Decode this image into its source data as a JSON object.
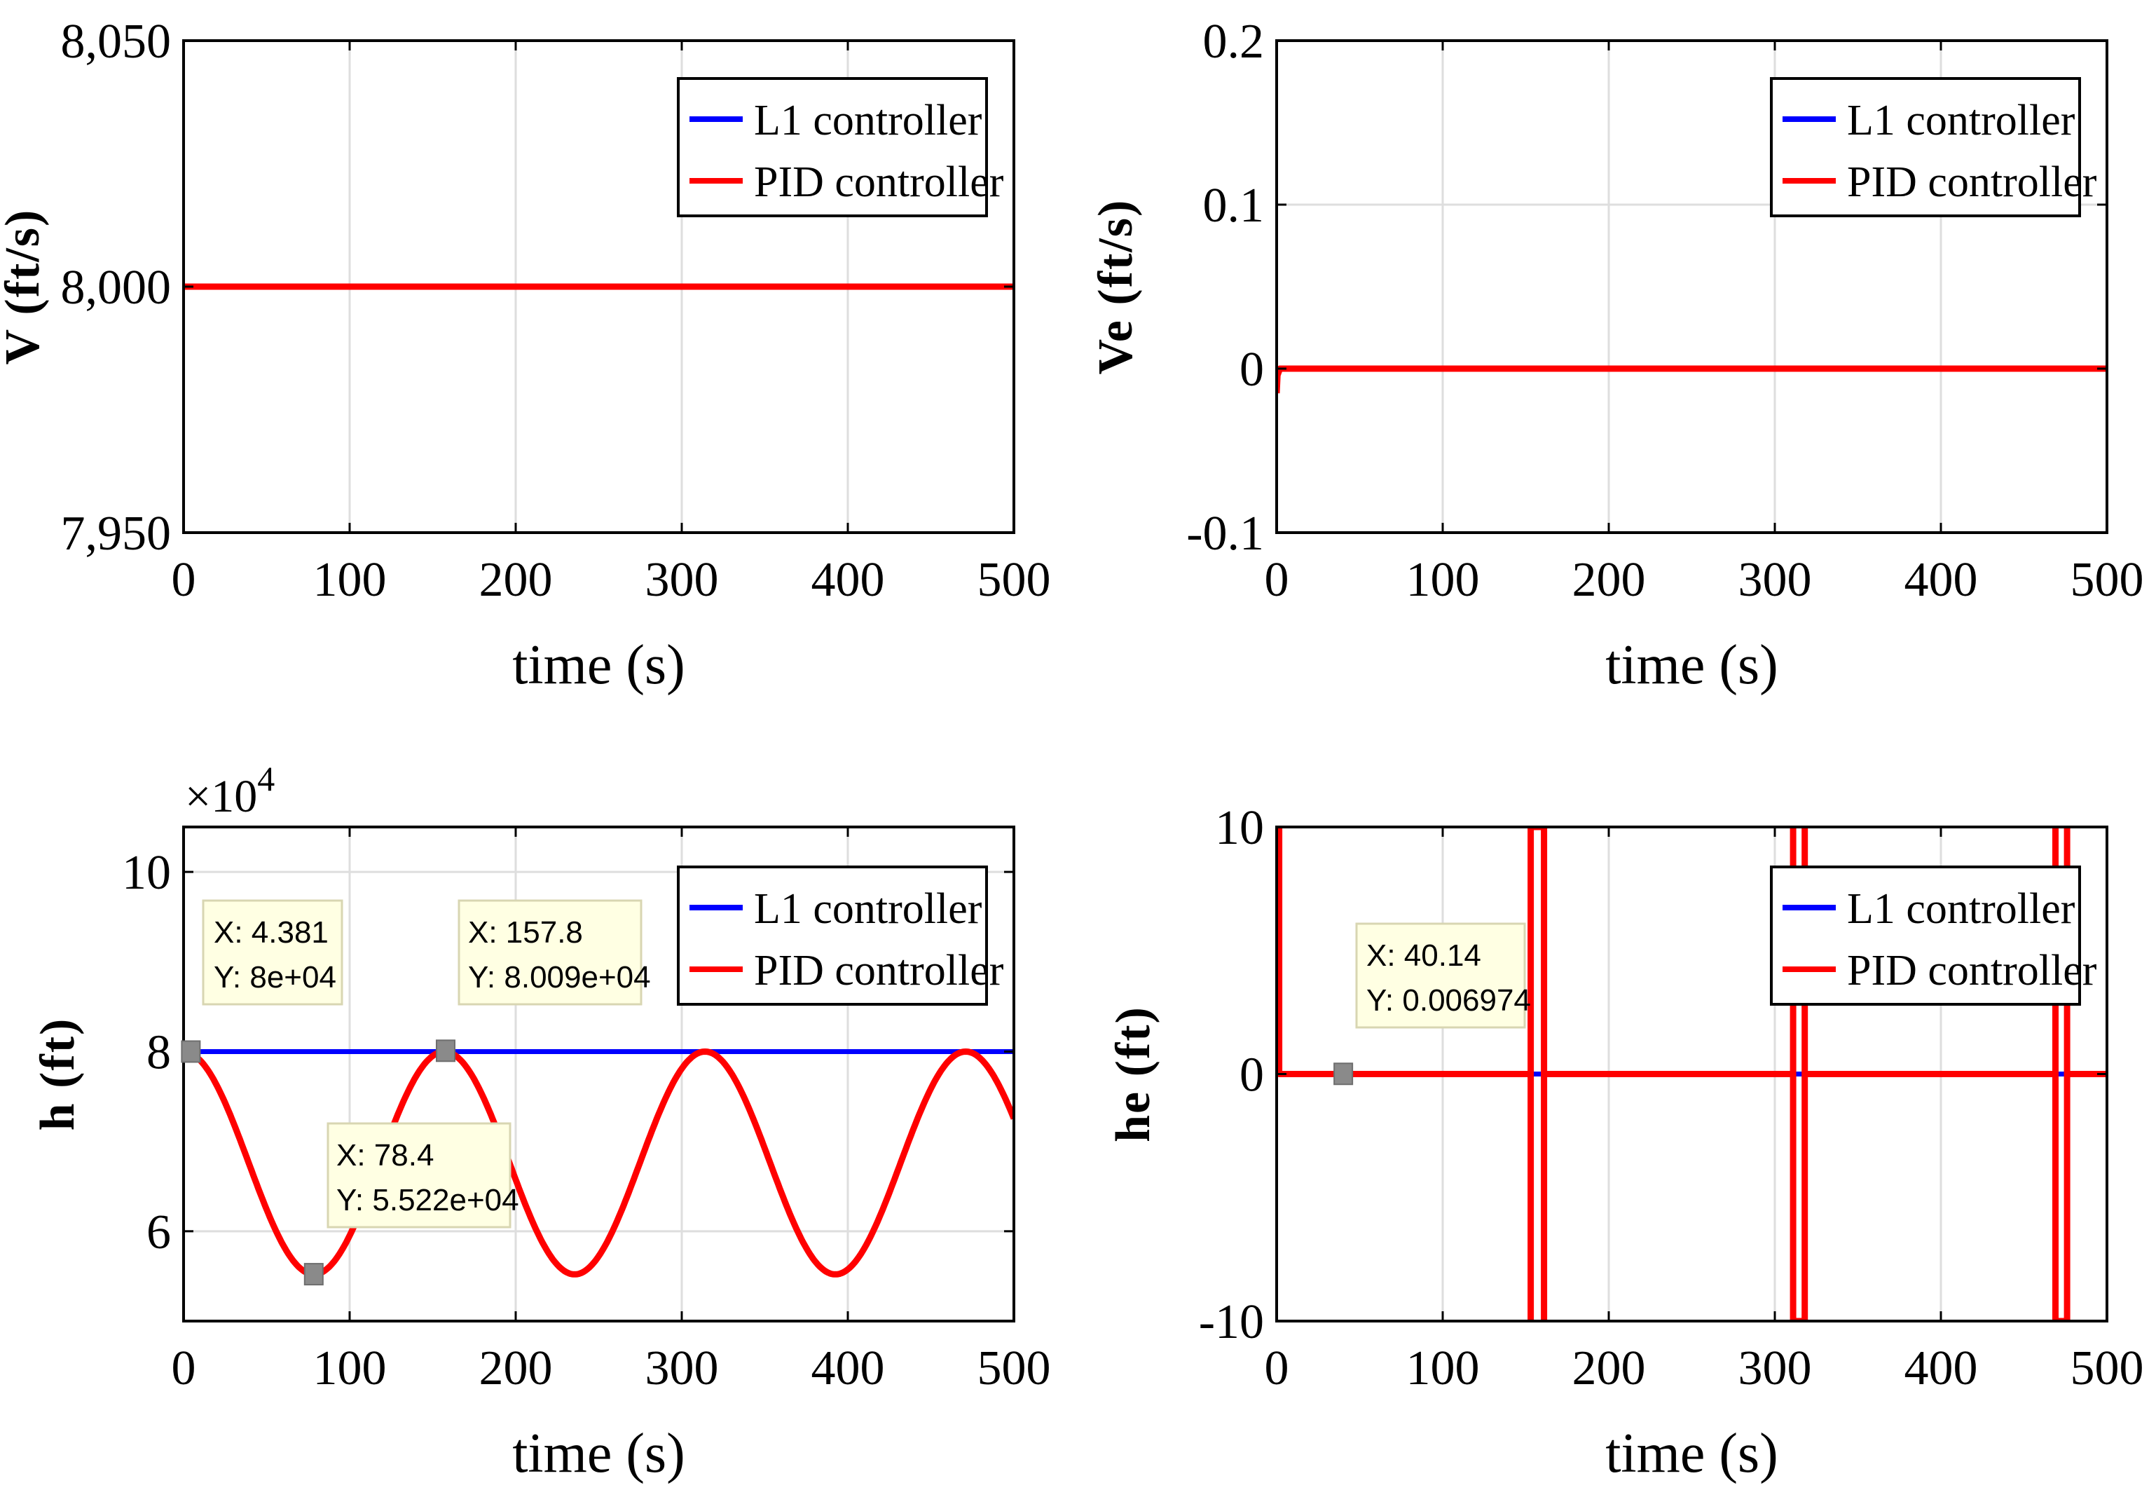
{
  "chart_data": [
    {
      "type": "line",
      "ylabel": "V (ft/s)",
      "xlabel": "time (s)",
      "xlim": [
        0,
        500
      ],
      "ylim": [
        7950,
        8050
      ],
      "grid": true,
      "xticks": [
        0,
        100,
        200,
        300,
        400,
        500
      ],
      "xtick_labels": [
        "0",
        "100",
        "200",
        "300",
        "400",
        "500"
      ],
      "yticks": [
        7950,
        8000,
        8050
      ],
      "ytick_labels": [
        "7,950",
        "8,000",
        "8,050"
      ],
      "legend": {
        "location": "top-right",
        "entries": [
          "L1 controller",
          "PID controller"
        ]
      },
      "series": [
        {
          "name": "L1 controller",
          "color": "#0000ff",
          "kind": "const",
          "value": 8000
        },
        {
          "name": "PID controller",
          "color": "#ff0000",
          "kind": "const",
          "value": 8000
        }
      ]
    },
    {
      "type": "line",
      "ylabel": "Ve (ft/s)",
      "xlabel": "time (s)",
      "xlim": [
        0,
        500
      ],
      "ylim": [
        -0.1,
        0.2
      ],
      "grid": true,
      "xticks": [
        0,
        100,
        200,
        300,
        400,
        500
      ],
      "xtick_labels": [
        "0",
        "100",
        "200",
        "300",
        "400",
        "500"
      ],
      "yticks": [
        -0.1,
        0,
        0.1,
        0.2
      ],
      "ytick_labels": [
        "-0.1",
        "0",
        "0.1",
        "0.2"
      ],
      "legend": {
        "location": "top-right",
        "entries": [
          "L1 controller",
          "PID controller"
        ]
      },
      "series": [
        {
          "name": "L1 controller",
          "color": "#0000ff",
          "kind": "const",
          "value": 0
        },
        {
          "name": "PID controller",
          "color": "#ff0000",
          "kind": "points",
          "x": [
            0,
            0.5,
            2,
            500
          ],
          "y": [
            -0.015,
            -0.004,
            0,
            0
          ]
        }
      ]
    },
    {
      "type": "line",
      "ylabel": "h (ft)",
      "xlabel": "time (s)",
      "xlim": [
        0,
        500
      ],
      "ylim": [
        5,
        10.5
      ],
      "y_multiplier_label": "×10",
      "y_multiplier_exponent": "4",
      "grid": true,
      "xticks": [
        0,
        100,
        200,
        300,
        400,
        500
      ],
      "xtick_labels": [
        "0",
        "100",
        "200",
        "300",
        "400",
        "500"
      ],
      "yticks": [
        6,
        8,
        10
      ],
      "ytick_labels": [
        "6",
        "8",
        "10"
      ],
      "legend": {
        "location": "top-right",
        "entries": [
          "L1 controller",
          "PID controller"
        ]
      },
      "series": [
        {
          "name": "L1 controller",
          "color": "#0000ff",
          "kind": "const",
          "value": 8
        },
        {
          "name": "PID controller",
          "color": "#ff0000",
          "kind": "cosine",
          "mean": 6.76,
          "amplitude": 1.24,
          "period": 157,
          "min": 5.52
        }
      ],
      "datatips": [
        {
          "x": 4.381,
          "y": 8.0,
          "x_label": "X: 4.381",
          "y_label": "Y: 8e+04"
        },
        {
          "x": 157.8,
          "y": 8.009,
          "x_label": "X: 157.8",
          "y_label": "Y: 8.009e+04"
        },
        {
          "x": 78.4,
          "y": 5.522,
          "x_label": "X: 78.4",
          "y_label": "Y: 5.522e+04"
        }
      ]
    },
    {
      "type": "line",
      "ylabel": "he (ft)",
      "xlabel": "time (s)",
      "xlim": [
        0,
        500
      ],
      "ylim": [
        -10,
        10
      ],
      "grid": true,
      "xticks": [
        0,
        100,
        200,
        300,
        400,
        500
      ],
      "xtick_labels": [
        "0",
        "100",
        "200",
        "300",
        "400",
        "500"
      ],
      "yticks": [
        -10,
        0,
        10
      ],
      "ytick_labels": [
        "-10",
        "0",
        "10"
      ],
      "legend": {
        "location": "top-right",
        "entries": [
          "L1 controller",
          "PID controller"
        ]
      },
      "series": [
        {
          "name": "L1 controller",
          "color": "#0000ff",
          "kind": "const",
          "value": 0
        },
        {
          "name": "PID controller",
          "color": "#ff0000",
          "kind": "points",
          "x": [
            0,
            0,
            1.5,
            1.5,
            153,
            153,
            153,
            161,
            161,
            161,
            311,
            311,
            311,
            318,
            318,
            318,
            469,
            469,
            469,
            476,
            476,
            476,
            500
          ],
          "y": [
            0,
            10,
            10,
            0,
            0,
            -10,
            10,
            10,
            -10,
            0,
            0,
            10,
            -10,
            -10,
            10,
            0,
            0,
            10,
            -10,
            -10,
            10,
            0,
            0
          ]
        }
      ],
      "datatips": [
        {
          "x": 40.14,
          "y": 0.006974,
          "x_label": "X: 40.14",
          "y_label": "Y: 0.006974"
        }
      ]
    }
  ]
}
